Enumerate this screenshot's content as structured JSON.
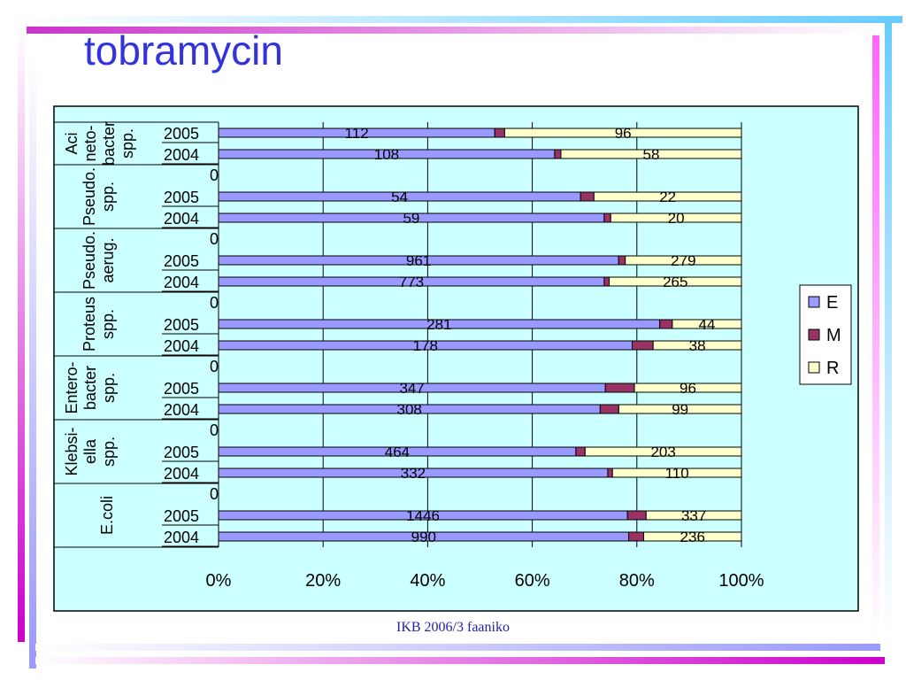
{
  "page": {
    "title": "tobramycin",
    "footer": "IKB 2006/3 faaniko"
  },
  "colors": {
    "E": "#9999ff",
    "M": "#993366",
    "R": "#ffffcc",
    "plot_bg": "#ccffff"
  },
  "chart_data": {
    "type": "bar",
    "orientation": "horizontal",
    "stacked": "percent",
    "title": "tobramycin",
    "legend": {
      "position": "right",
      "entries": [
        "E",
        "M",
        "R"
      ]
    },
    "xlim": [
      0,
      100
    ],
    "x_ticks": [
      "0%",
      "20%",
      "40%",
      "60%",
      "80%",
      "100%"
    ],
    "grid": true,
    "groups": [
      {
        "name": [
          "Aci",
          "neto-",
          "bacter",
          "spp."
        ],
        "rows": [
          {
            "year": "2005",
            "E": 112,
            "M": 4,
            "R": 96
          },
          {
            "year": "2004",
            "E": 108,
            "M": 2,
            "R": 58
          }
        ]
      },
      {
        "name": [
          "Pseudo.",
          "spp."
        ],
        "rows": [
          {
            "year": "",
            "E": 0,
            "M": 0,
            "R": 0,
            "label": "0"
          },
          {
            "year": "2005",
            "E": 54,
            "M": 2,
            "R": 22
          },
          {
            "year": "2004",
            "E": 59,
            "M": 1,
            "R": 20
          }
        ]
      },
      {
        "name": [
          "Pseudo.",
          "aerug."
        ],
        "rows": [
          {
            "year": "",
            "E": 0,
            "M": 0,
            "R": 0,
            "label": "0"
          },
          {
            "year": "2005",
            "E": 961,
            "M": 16,
            "R": 279
          },
          {
            "year": "2004",
            "E": 773,
            "M": 10,
            "R": 265
          }
        ]
      },
      {
        "name": [
          "Proteus",
          "spp."
        ],
        "rows": [
          {
            "year": "",
            "E": 0,
            "M": 0,
            "R": 0,
            "label": "0"
          },
          {
            "year": "2005",
            "E": 281,
            "M": 8,
            "R": 44
          },
          {
            "year": "2004",
            "E": 178,
            "M": 9,
            "R": 38
          }
        ]
      },
      {
        "name": [
          "Entero-",
          "bacter",
          "spp."
        ],
        "rows": [
          {
            "year": "",
            "E": 0,
            "M": 0,
            "R": 0,
            "label": "0"
          },
          {
            "year": "2005",
            "E": 347,
            "M": 26,
            "R": 96
          },
          {
            "year": "2004",
            "E": 308,
            "M": 15,
            "R": 99
          }
        ]
      },
      {
        "name": [
          "Klebsi-",
          "ella",
          "spp."
        ],
        "rows": [
          {
            "year": "",
            "E": 0,
            "M": 0,
            "R": 0,
            "label": "0"
          },
          {
            "year": "2005",
            "E": 464,
            "M": 12,
            "R": 203
          },
          {
            "year": "2004",
            "E": 332,
            "M": 4,
            "R": 110
          }
        ]
      },
      {
        "name": [
          "E.coli"
        ],
        "rows": [
          {
            "year": "",
            "E": 0,
            "M": 0,
            "R": 0,
            "label": "0"
          },
          {
            "year": "2005",
            "E": 1446,
            "M": 66,
            "R": 337
          },
          {
            "year": "2004",
            "E": 990,
            "M": 36,
            "R": 236
          }
        ]
      }
    ]
  }
}
